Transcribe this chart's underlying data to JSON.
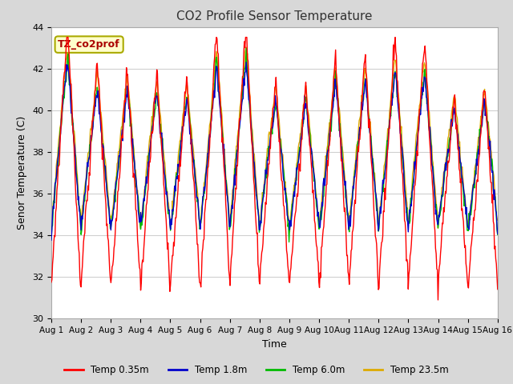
{
  "title": "CO2 Profile Sensor Temperature",
  "xlabel": "Time",
  "ylabel": "Senor Temperature (C)",
  "ylim": [
    30,
    44
  ],
  "yticks": [
    30,
    32,
    34,
    36,
    38,
    40,
    42,
    44
  ],
  "xtick_labels": [
    "Aug 1",
    "Aug 2",
    "Aug 3",
    "Aug 4",
    "Aug 5",
    "Aug 6",
    "Aug 7",
    "Aug 8",
    "Aug 9",
    "Aug 10",
    "Aug 11",
    "Aug 12",
    "Aug 13",
    "Aug 14",
    "Aug 15",
    "Aug 16"
  ],
  "legend_labels": [
    "Temp 0.35m",
    "Temp 1.8m",
    "Temp 6.0m",
    "Temp 23.5m"
  ],
  "line_colors": [
    "#ff0000",
    "#0000cc",
    "#00bb00",
    "#ddaa00"
  ],
  "annotation_text": "TZ_co2prof",
  "annotation_color": "#aa0000",
  "annotation_bg": "#ffffcc",
  "annotation_border": "#aaaa00",
  "fig_bg_color": "#d8d8d8",
  "plot_bg": "#ffffff",
  "grid_color": "#d0d0d0",
  "n_days": 15,
  "points_per_day": 48
}
